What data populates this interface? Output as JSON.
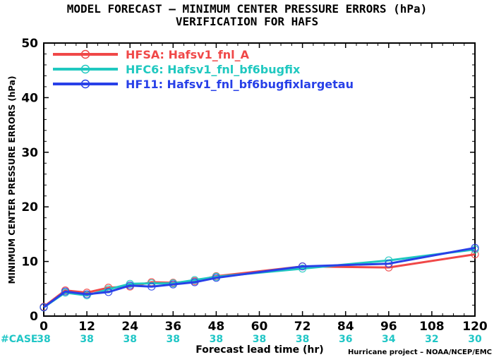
{
  "titles": [
    "MODEL FORECAST – MINIMUM CENTER PRESSURE ERRORS (hPa)",
    "VERIFICATION FOR HAFS"
  ],
  "credit": "Hurricane project – NOAA/NCEP/EMC",
  "case_label": "#CASE",
  "colors": {
    "HFSA": "#f04848",
    "HFC6": "#20c8c0",
    "HF11": "#2840e8",
    "case": "#20c6c6"
  },
  "chart_data": {
    "type": "line",
    "xlabel": "Forecast lead time (hr)",
    "ylabel": "MINIMUM CENTER PRESSURE ERRORS (hPa)",
    "xlim": [
      0,
      120
    ],
    "ylim": [
      0,
      50
    ],
    "xticks": [
      0,
      12,
      24,
      36,
      48,
      60,
      72,
      84,
      96,
      108,
      120
    ],
    "yticks": [
      0,
      10,
      20,
      30,
      40,
      50
    ],
    "grid": false,
    "legend_position": "top-left",
    "cases": {
      "x": [
        0,
        12,
        24,
        36,
        48,
        60,
        72,
        84,
        96,
        108,
        120
      ],
      "counts": [
        38,
        38,
        38,
        38,
        38,
        38,
        38,
        36,
        34,
        32,
        30
      ]
    },
    "series": [
      {
        "name": "HFSA: Hafsv1_fnl_A",
        "color": "#f04848",
        "x": [
          0,
          6,
          12,
          18,
          24,
          30,
          36,
          42,
          48,
          72,
          96,
          120
        ],
        "y": [
          1.7,
          4.7,
          4.3,
          5.2,
          5.4,
          6.2,
          6.1,
          6.4,
          7.3,
          9.1,
          8.9,
          11.3
        ]
      },
      {
        "name": "HFC6: Hafsv1_fnl_bf6bugfix",
        "color": "#20c8c0",
        "x": [
          0,
          6,
          12,
          18,
          24,
          30,
          36,
          42,
          48,
          72,
          96,
          120
        ],
        "y": [
          1.6,
          4.3,
          3.8,
          4.9,
          5.9,
          6.0,
          6.0,
          6.6,
          7.2,
          8.7,
          10.2,
          12.2
        ]
      },
      {
        "name": "HF11: Hafsv1_fnl_bf6bugfixlargetau",
        "color": "#2840e8",
        "x": [
          0,
          6,
          12,
          18,
          24,
          30,
          36,
          42,
          48,
          72,
          96,
          120
        ],
        "y": [
          1.6,
          4.5,
          4.0,
          4.4,
          5.6,
          5.4,
          5.8,
          6.2,
          7.0,
          9.1,
          9.6,
          12.5
        ]
      }
    ]
  }
}
